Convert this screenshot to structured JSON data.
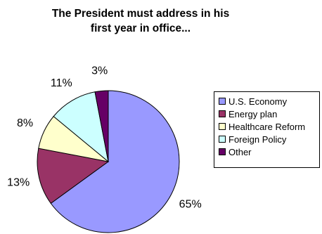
{
  "chart_data": {
    "type": "pie",
    "title_lines": [
      "The President must address in his",
      "first year in office..."
    ],
    "slices": [
      {
        "label": "U.S. Economy",
        "value": 65,
        "value_label": "65%",
        "color": "#9999ff"
      },
      {
        "label": "Energy plan",
        "value": 13,
        "value_label": "13%",
        "color": "#993366"
      },
      {
        "label": "Healthcare Reform",
        "value": 8,
        "value_label": "8%",
        "color": "#ffffcc"
      },
      {
        "label": "Foreign Policy",
        "value": 11,
        "value_label": "11%",
        "color": "#ccffff"
      },
      {
        "label": "Other",
        "value": 3,
        "value_label": "3%",
        "color": "#660066"
      }
    ],
    "legend_position": "right"
  }
}
